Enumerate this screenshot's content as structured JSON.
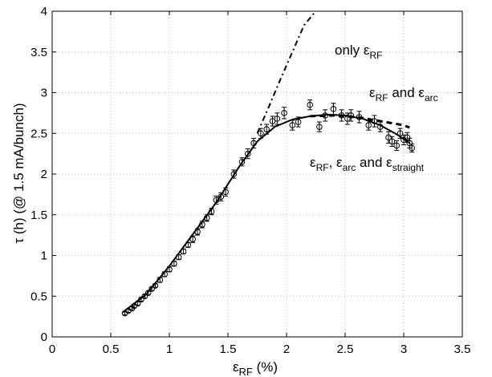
{
  "chart_data": {
    "type": "scatter",
    "xlabel": {
      "base": "ε",
      "sub": "RF",
      "rest": " (%)"
    },
    "ylabel": "τ (h) (@ 1.5 mA/bunch)",
    "xlim": [
      0,
      3.5
    ],
    "ylim": [
      0,
      4
    ],
    "x_ticks": [
      "0",
      "0.5",
      "1",
      "1.5",
      "2",
      "2.5",
      "3",
      "3.5"
    ],
    "y_ticks": [
      "0",
      "0.5",
      "1",
      "1.5",
      "2",
      "2.5",
      "3",
      "3.5",
      "4"
    ],
    "grid": true,
    "annotations": {
      "only_rf": {
        "prefix": "only ",
        "eps": "ε",
        "sub": "RF"
      },
      "rf_arc": {
        "eps1": "ε",
        "sub1": "RF",
        "mid": " and ",
        "eps2": "ε",
        "sub2": "arc"
      },
      "rf_arc_straight": {
        "eps1": "ε",
        "sub1": "RF",
        "sep": ", ",
        "eps2": "ε",
        "sub2": "arc",
        "mid": " and ",
        "eps3": "ε",
        "sub3": "straight"
      }
    },
    "series": [
      {
        "style": "dash-dot",
        "x": [
          1.75,
          1.85,
          1.95,
          2.05,
          2.15,
          2.25
        ],
        "y": [
          2.5,
          2.83,
          3.17,
          3.5,
          3.83,
          4.0
        ]
      },
      {
        "style": "dashed",
        "x": [
          2.2,
          2.4,
          2.6,
          2.8,
          3.0,
          3.05
        ],
        "y": [
          2.71,
          2.72,
          2.7,
          2.65,
          2.6,
          2.57
        ]
      },
      {
        "style": "solid",
        "x": [
          0.6,
          0.8,
          1.0,
          1.2,
          1.4,
          1.6,
          1.75,
          1.9,
          2.05,
          2.2,
          2.35,
          2.5,
          2.65,
          2.8,
          2.95,
          3.05
        ],
        "y": [
          0.3,
          0.52,
          0.87,
          1.26,
          1.65,
          2.1,
          2.4,
          2.58,
          2.67,
          2.71,
          2.73,
          2.72,
          2.68,
          2.6,
          2.48,
          2.38
        ]
      }
    ],
    "measurements": {
      "x": [
        0.62,
        0.65,
        0.68,
        0.7,
        0.73,
        0.76,
        0.79,
        0.82,
        0.85,
        0.88,
        0.92,
        0.96,
        1.0,
        1.04,
        1.08,
        1.12,
        1.16,
        1.2,
        1.24,
        1.28,
        1.32,
        1.36,
        1.4,
        1.44,
        1.48,
        1.55,
        1.62,
        1.67,
        1.72,
        1.78,
        1.83,
        1.88,
        1.92,
        1.98,
        2.05,
        2.1,
        2.2,
        2.28,
        2.33,
        2.4,
        2.47,
        2.52,
        2.55,
        2.62,
        2.7,
        2.75,
        2.8,
        2.87,
        2.9,
        2.94,
        2.97,
        3.0,
        3.03,
        3.05,
        3.07
      ],
      "y": [
        0.29,
        0.32,
        0.35,
        0.38,
        0.41,
        0.46,
        0.5,
        0.54,
        0.59,
        0.63,
        0.7,
        0.77,
        0.83,
        0.9,
        0.98,
        1.05,
        1.13,
        1.2,
        1.29,
        1.38,
        1.46,
        1.54,
        1.68,
        1.72,
        1.78,
        2.0,
        2.15,
        2.25,
        2.38,
        2.5,
        2.55,
        2.65,
        2.68,
        2.75,
        2.6,
        2.64,
        2.85,
        2.58,
        2.72,
        2.8,
        2.72,
        2.68,
        2.72,
        2.7,
        2.6,
        2.65,
        2.58,
        2.45,
        2.4,
        2.35,
        2.5,
        2.42,
        2.45,
        2.38,
        2.32
      ],
      "err": [
        0.02,
        0.02,
        0.02,
        0.02,
        0.02,
        0.02,
        0.02,
        0.02,
        0.02,
        0.02,
        0.03,
        0.03,
        0.03,
        0.03,
        0.03,
        0.03,
        0.03,
        0.04,
        0.04,
        0.04,
        0.04,
        0.04,
        0.05,
        0.05,
        0.05,
        0.05,
        0.05,
        0.06,
        0.06,
        0.06,
        0.06,
        0.06,
        0.07,
        0.07,
        0.06,
        0.06,
        0.06,
        0.06,
        0.07,
        0.07,
        0.07,
        0.07,
        0.07,
        0.07,
        0.06,
        0.07,
        0.06,
        0.07,
        0.06,
        0.06,
        0.06,
        0.06,
        0.06,
        0.06,
        0.05
      ]
    }
  }
}
